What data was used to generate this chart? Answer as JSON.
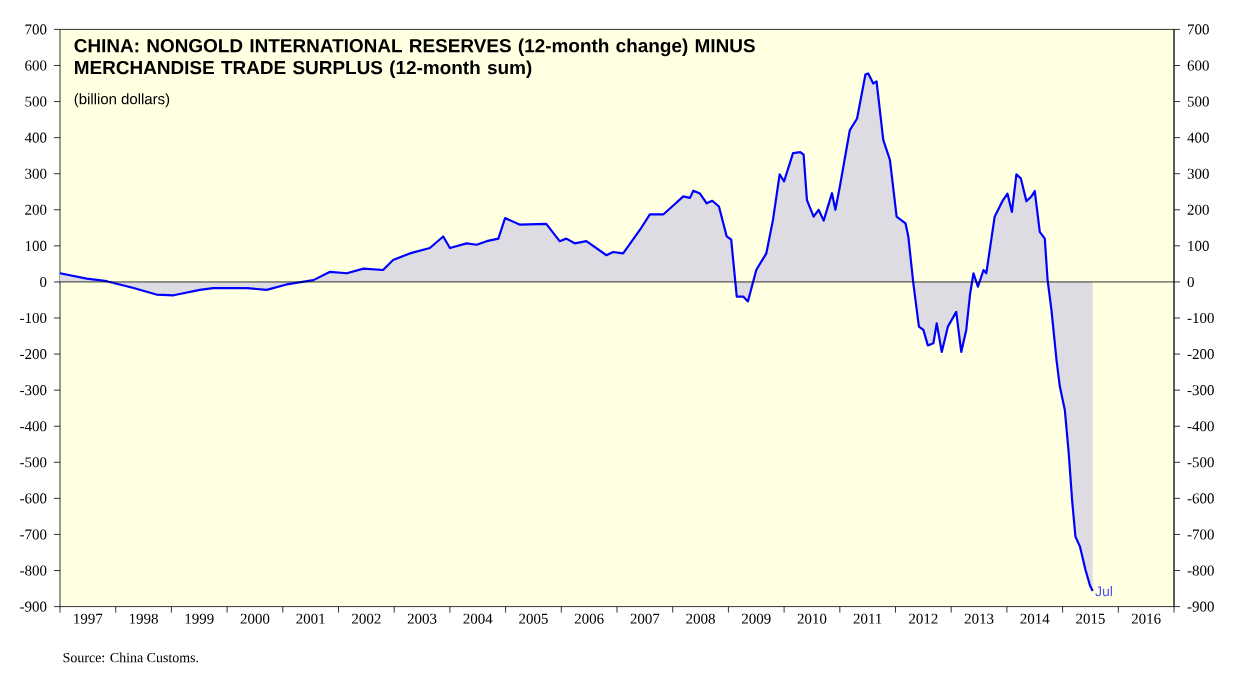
{
  "chart_data": {
    "type": "area",
    "title": "CHINA: NONGOLD INTERNATIONAL RESERVES (12-month change) MINUS MERCHANDISE TRADE SURPLUS (12-month sum)",
    "subtitle": "(billion dollars)",
    "xlim": [
      1997,
      2017
    ],
    "xticks": [
      {
        "value": 1997,
        "label": null
      },
      {
        "value": 1998,
        "label": null
      },
      {
        "value": 1999,
        "label": null
      },
      {
        "value": 2000,
        "label": null
      },
      {
        "value": 2001,
        "label": null
      },
      {
        "value": 2002,
        "label": null
      },
      {
        "value": 2003,
        "label": null
      },
      {
        "value": 2004,
        "label": null
      },
      {
        "value": 2005,
        "label": null
      },
      {
        "value": 2006,
        "label": null
      },
      {
        "value": 2007,
        "label": null
      },
      {
        "value": 2008,
        "label": null
      },
      {
        "value": 2009,
        "label": null
      },
      {
        "value": 2010,
        "label": null
      },
      {
        "value": 2011,
        "label": null
      },
      {
        "value": 2012,
        "label": null
      },
      {
        "value": 2013,
        "label": null
      },
      {
        "value": 2014,
        "label": null
      },
      {
        "value": 2015,
        "label": null
      },
      {
        "value": 2016,
        "label": null
      },
      {
        "value": 2017,
        "label": null
      },
      {
        "value": 1997.5,
        "label": "1997"
      },
      {
        "value": 1998.5,
        "label": "1998"
      },
      {
        "value": 1999.5,
        "label": "1999"
      },
      {
        "value": 2000.5,
        "label": "2000"
      },
      {
        "value": 2001.5,
        "label": "2001"
      },
      {
        "value": 2002.5,
        "label": "2002"
      },
      {
        "value": 2003.5,
        "label": "2003"
      },
      {
        "value": 2004.5,
        "label": "2004"
      },
      {
        "value": 2005.5,
        "label": "2005"
      },
      {
        "value": 2006.5,
        "label": "2006"
      },
      {
        "value": 2007.5,
        "label": "2007"
      },
      {
        "value": 2008.5,
        "label": "2008"
      },
      {
        "value": 2009.5,
        "label": "2009"
      },
      {
        "value": 2010.5,
        "label": "2010"
      },
      {
        "value": 2011.5,
        "label": "2011"
      },
      {
        "value": 2012.5,
        "label": "2012"
      },
      {
        "value": 2013.5,
        "label": "2013"
      },
      {
        "value": 2014.5,
        "label": "2014"
      },
      {
        "value": 2015.5,
        "label": "2015"
      },
      {
        "value": 2016.5,
        "label": "2016"
      }
    ],
    "ylim": [
      -900,
      700
    ],
    "yticks": [
      -900,
      -800,
      -700,
      -600,
      -500,
      -400,
      -300,
      -200,
      -100,
      0,
      100,
      200,
      300,
      400,
      500,
      600,
      700
    ],
    "y2lim": [
      -900,
      700
    ],
    "y2ticks": [
      -900,
      -800,
      -700,
      -600,
      -500,
      -400,
      -300,
      -200,
      -100,
      0,
      100,
      200,
      300,
      400,
      500,
      600,
      700
    ],
    "series": [
      {
        "color": "#0000ff",
        "x": [
          1997.0,
          1997.48,
          1997.84,
          1998.32,
          1998.73,
          1999.04,
          1999.51,
          1999.75,
          2000.35,
          2000.71,
          2001.07,
          2001.55,
          2001.85,
          2002.15,
          2002.45,
          2002.8,
          2002.98,
          2003.28,
          2003.64,
          2003.88,
          2004.0,
          2004.3,
          2004.48,
          2004.66,
          2004.87,
          2004.99,
          2005.25,
          2005.73,
          2005.97,
          2006.09,
          2006.24,
          2006.45,
          2006.81,
          2006.93,
          2007.11,
          2007.41,
          2007.59,
          2007.83,
          2008.01,
          2008.19,
          2008.31,
          2008.37,
          2008.49,
          2008.61,
          2008.71,
          2008.83,
          2008.97,
          2009.05,
          2009.15,
          2009.27,
          2009.35,
          2009.5,
          2009.68,
          2009.8,
          2009.92,
          2010.0,
          2010.16,
          2010.29,
          2010.35,
          2010.41,
          2010.53,
          2010.62,
          2010.71,
          2010.86,
          2010.92,
          2011.0,
          2011.18,
          2011.31,
          2011.46,
          2011.51,
          2011.6,
          2011.66,
          2011.78,
          2011.9,
          2012.02,
          2012.18,
          2012.23,
          2012.32,
          2012.42,
          2012.5,
          2012.58,
          2012.68,
          2012.74,
          2012.83,
          2012.94,
          2013.09,
          2013.18,
          2013.27,
          2013.34,
          2013.4,
          2013.48,
          2013.58,
          2013.63,
          2013.78,
          2013.93,
          2014.01,
          2014.09,
          2014.17,
          2014.25,
          2014.35,
          2014.44,
          2014.5,
          2014.59,
          2014.68,
          2014.73,
          2014.8,
          2014.89,
          2014.95,
          2015.04,
          2015.11,
          2015.17,
          2015.23,
          2015.31,
          2015.41,
          2015.49,
          2015.54
        ],
        "values": [
          24,
          9,
          2,
          -17,
          -35,
          -37,
          -22,
          -17,
          -17,
          -22,
          -7,
          5,
          28,
          24,
          37,
          33,
          61,
          79,
          94,
          126,
          94,
          107,
          103,
          113,
          120,
          177,
          159,
          161,
          113,
          120,
          107,
          113,
          74,
          83,
          79,
          144,
          187,
          187,
          212,
          237,
          233,
          253,
          245,
          218,
          225,
          209,
          126,
          117,
          -41,
          -41,
          -54,
          33,
          79,
          172,
          298,
          279,
          357,
          360,
          353,
          227,
          181,
          200,
          170,
          246,
          200,
          264,
          421,
          453,
          575,
          578,
          550,
          556,
          394,
          338,
          181,
          162,
          126,
          -4,
          -124,
          -133,
          -176,
          -170,
          -115,
          -194,
          -124,
          -83,
          -194,
          -133,
          -32,
          24,
          -13,
          33,
          24,
          181,
          227,
          245,
          194,
          298,
          287,
          224,
          237,
          252,
          139,
          120,
          6,
          -78,
          -216,
          -290,
          -355,
          -475,
          -604,
          -706,
          -733,
          -798,
          -841,
          -857
        ]
      }
    ],
    "ref_lines": [
      {
        "axis": "y",
        "value": 0,
        "color": "#000000"
      }
    ],
    "annotations": [
      {
        "text": "Jul",
        "x": 2015.54,
        "y": -857
      },
      "Source: China Customs."
    ]
  }
}
